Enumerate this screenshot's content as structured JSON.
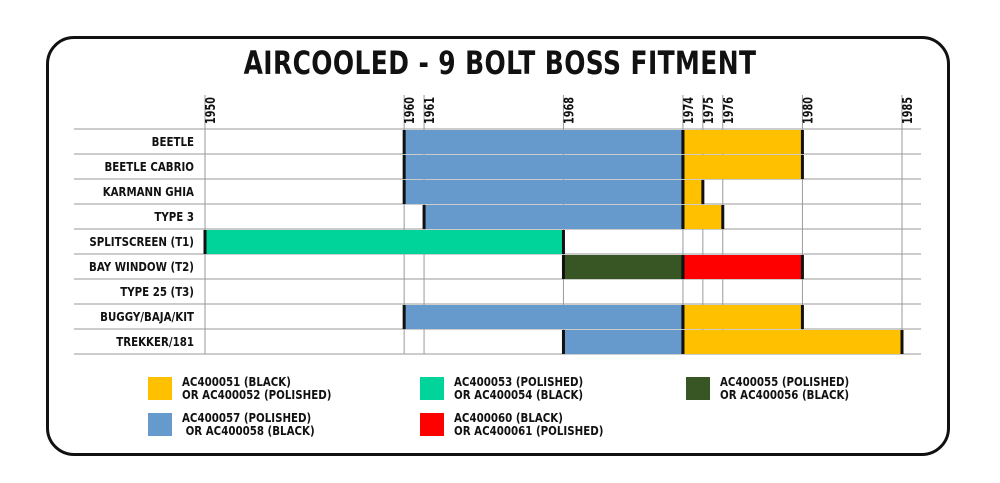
{
  "title": "AIRCOOLED - 9 BOLT BOSS FITMENT",
  "chart_data": {
    "type": "bar",
    "subtype": "gantt",
    "title": "AIRCOOLED - 9 BOLT BOSS FITMENT",
    "xlim": [
      1950,
      1985
    ],
    "x_ticks": [
      1950,
      1960,
      1961,
      1968,
      1974,
      1975,
      1976,
      1980,
      1985
    ],
    "grid": true,
    "categories": [
      "BEETLE",
      "BEETLE CABRIO",
      "KARMANN GHIA",
      "TYPE 3",
      "SPLITSCREEN (T1)",
      "BAY WINDOW (T2)",
      "TYPE 25 (T3)",
      "BUGGY/BAJA/KIT",
      "TREKKER/181"
    ],
    "series": [
      {
        "name": "AC400051 (BLACK) OR AC400052 (POLISHED)",
        "color": "#FFC000",
        "bars": [
          {
            "category": "BEETLE",
            "start": 1974,
            "end": 1980
          },
          {
            "category": "BEETLE CABRIO",
            "start": 1974,
            "end": 1980
          },
          {
            "category": "KARMANN GHIA",
            "start": 1974,
            "end": 1975
          },
          {
            "category": "TYPE 3",
            "start": 1974,
            "end": 1976
          },
          {
            "category": "BUGGY/BAJA/KIT",
            "start": 1974,
            "end": 1980
          },
          {
            "category": "TREKKER/181",
            "start": 1974,
            "end": 1985
          }
        ]
      },
      {
        "name": "AC400053 (POLISHED) OR AC400054 (BLACK)",
        "color": "#00D49A",
        "bars": [
          {
            "category": "SPLITSCREEN (T1)",
            "start": 1950,
            "end": 1968
          }
        ]
      },
      {
        "name": "AC400055 (POLISHED) OR AC400056 (BLACK)",
        "color": "#375623",
        "bars": [
          {
            "category": "BAY WINDOW (T2)",
            "start": 1968,
            "end": 1974
          }
        ]
      },
      {
        "name": "AC400057 (POLISHED) OR AC400058 (BLACK)",
        "color": "#6699CC",
        "bars": [
          {
            "category": "BEETLE",
            "start": 1960,
            "end": 1974
          },
          {
            "category": "BEETLE CABRIO",
            "start": 1960,
            "end": 1974
          },
          {
            "category": "KARMANN GHIA",
            "start": 1960,
            "end": 1974
          },
          {
            "category": "TYPE 3",
            "start": 1961,
            "end": 1974
          },
          {
            "category": "BUGGY/BAJA/KIT",
            "start": 1960,
            "end": 1974
          },
          {
            "category": "TREKKER/181",
            "start": 1968,
            "end": 1974
          }
        ]
      },
      {
        "name": "AC400060 (BLACK) OR AC400061 (POLISHED)",
        "color": "#FF0000",
        "bars": [
          {
            "category": "BAY WINDOW (T2)",
            "start": 1974,
            "end": 1980
          }
        ]
      }
    ],
    "legend": {
      "placement": "bottom",
      "entries": [
        {
          "line1": "AC400051 (BLACK)",
          "line2": "OR AC400052 (POLISHED)",
          "color": "#FFC000"
        },
        {
          "line1": "AC400053 (POLISHED)",
          "line2": "OR AC400054 (BLACK)",
          "color": "#00D49A"
        },
        {
          "line1": "AC400055 (POLISHED)",
          "line2": "OR AC400056 (BLACK)",
          "color": "#375623"
        },
        {
          "line1": "AC400057 (POLISHED)",
          "line2": " OR AC400058 (BLACK)",
          "color": "#6699CC"
        },
        {
          "line1": "AC400060 (BLACK)",
          "line2": "OR AC400061 (POLISHED)",
          "color": "#FF0000"
        }
      ]
    }
  }
}
